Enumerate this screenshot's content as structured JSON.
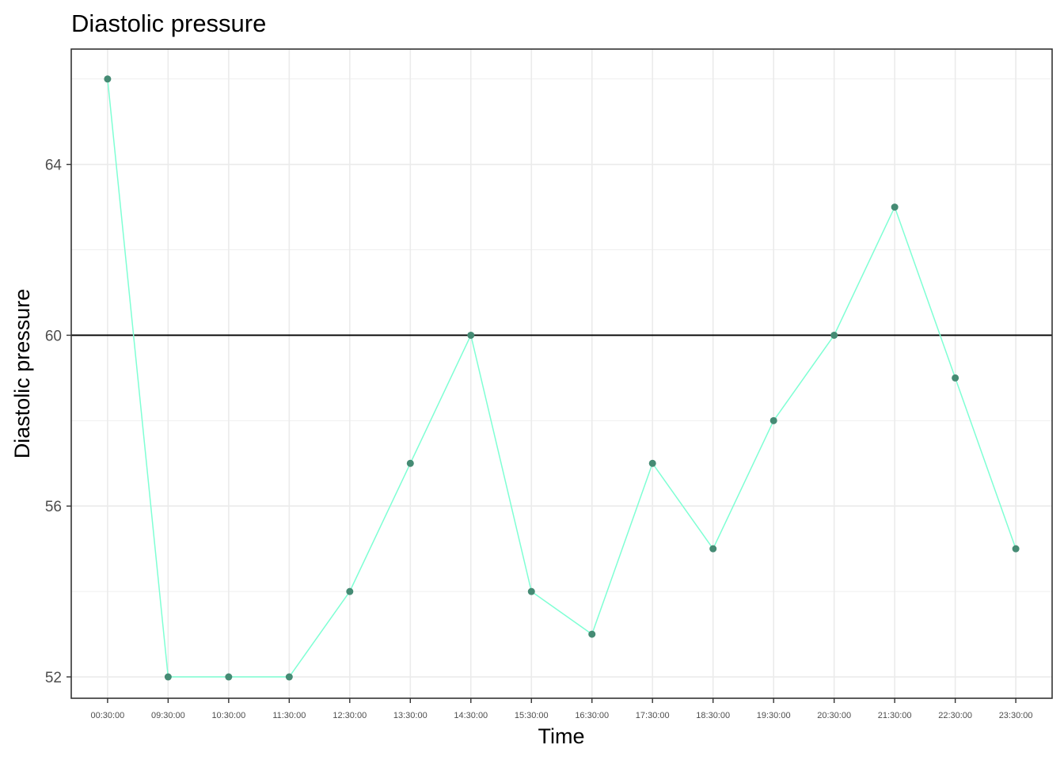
{
  "chart_data": {
    "type": "line",
    "title": "Diastolic pressure",
    "xlabel": "Time",
    "ylabel": "Diastolic pressure",
    "categories": [
      "00:30:00",
      "09:30:00",
      "10:30:00",
      "11:30:00",
      "12:30:00",
      "13:30:00",
      "14:30:00",
      "15:30:00",
      "16:30:00",
      "17:30:00",
      "18:30:00",
      "19:30:00",
      "20:30:00",
      "21:30:00",
      "22:30:00",
      "23:30:00"
    ],
    "series": [
      {
        "values": [
          66,
          52,
          52,
          52,
          54,
          57,
          60,
          54,
          53,
          57,
          55,
          58,
          60,
          63,
          59,
          55
        ]
      }
    ],
    "ylim": [
      51.5,
      66.7
    ],
    "yticks": [
      52,
      56,
      60,
      64
    ],
    "reference_line": 60,
    "grid": true,
    "legend": "none",
    "colors": {
      "line": "#7fffd4",
      "point": "#458b74",
      "reference_line": "#000000",
      "grid": "#ebebeb",
      "panel_border": "#333333"
    }
  }
}
